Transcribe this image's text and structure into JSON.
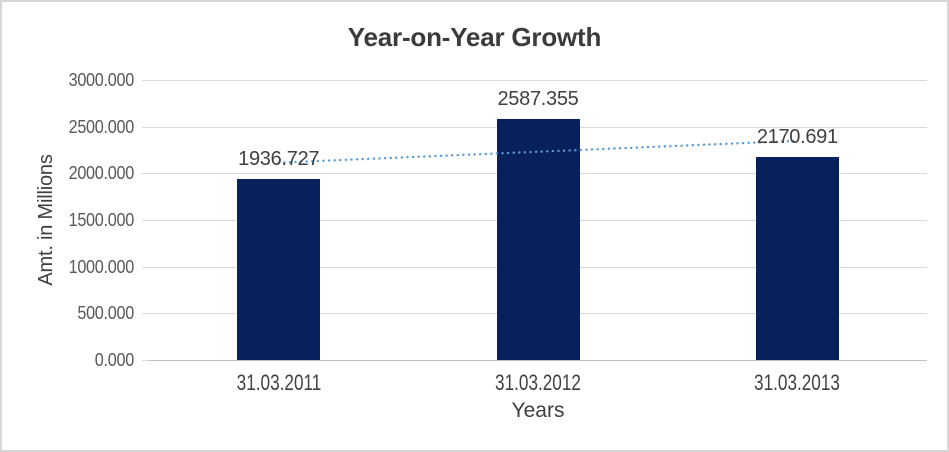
{
  "chart_data": {
    "type": "bar",
    "title": "Year-on-Year Growth",
    "xlabel": "Years",
    "ylabel": "Amt. in Millions",
    "categories": [
      "31.03.2011",
      "31.03.2012",
      "31.03.2013"
    ],
    "values": [
      1936.727,
      2587.355,
      2170.691
    ],
    "data_labels": [
      "1936.727",
      "2587.355",
      "2170.691"
    ],
    "y_ticks": [
      "3000.000",
      "2500.000",
      "2000.000",
      "1500.000",
      "1000.000",
      "500.000",
      "0.000"
    ],
    "ylim": [
      0,
      3000
    ],
    "grid": true,
    "legend": false,
    "bar_color": "#08215d",
    "gridline_color": "#d9d9d9",
    "axis_line_color": "#c0c0c0",
    "trendline": {
      "type": "linear",
      "style": "dotted",
      "color": "#5b9bd5",
      "endpoint_values": [
        2114.609,
        2348.573
      ]
    }
  }
}
